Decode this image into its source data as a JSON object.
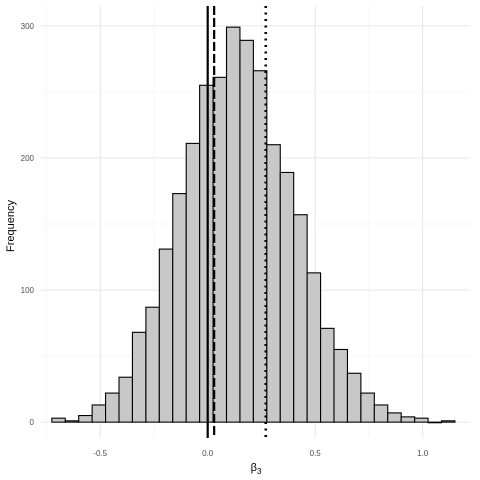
{
  "chart_data": {
    "type": "bar",
    "subtype": "histogram",
    "xlabel": "β",
    "xlabel_subscript": "3",
    "ylabel": "Frequency",
    "xlim": [
      -0.78,
      1.22
    ],
    "ylim": [
      -12,
      315
    ],
    "x_ticks": [
      -0.5,
      0.0,
      0.5,
      1.0
    ],
    "x_tick_labels": [
      "-0.5",
      "0.0",
      "0.5",
      "1.0"
    ],
    "y_ticks": [
      0,
      100,
      200,
      300
    ],
    "y_tick_labels": [
      "0",
      "100",
      "200",
      "300"
    ],
    "grid": true,
    "bin_width": 0.0625,
    "bins": [
      {
        "x0": -0.725,
        "x1": -0.6625,
        "count": 3
      },
      {
        "x0": -0.6625,
        "x1": -0.6,
        "count": 1
      },
      {
        "x0": -0.6,
        "x1": -0.5375,
        "count": 5
      },
      {
        "x0": -0.5375,
        "x1": -0.475,
        "count": 13
      },
      {
        "x0": -0.475,
        "x1": -0.4125,
        "count": 22
      },
      {
        "x0": -0.4125,
        "x1": -0.35,
        "count": 34
      },
      {
        "x0": -0.35,
        "x1": -0.2875,
        "count": 68
      },
      {
        "x0": -0.2875,
        "x1": -0.225,
        "count": 87
      },
      {
        "x0": -0.225,
        "x1": -0.1625,
        "count": 131
      },
      {
        "x0": -0.1625,
        "x1": -0.1,
        "count": 173
      },
      {
        "x0": -0.1,
        "x1": -0.0375,
        "count": 211
      },
      {
        "x0": -0.0375,
        "x1": 0.025,
        "count": 255
      },
      {
        "x0": 0.025,
        "x1": 0.0875,
        "count": 261
      },
      {
        "x0": 0.0875,
        "x1": 0.15,
        "count": 299
      },
      {
        "x0": 0.15,
        "x1": 0.2125,
        "count": 289
      },
      {
        "x0": 0.2125,
        "x1": 0.275,
        "count": 266
      },
      {
        "x0": 0.275,
        "x1": 0.3375,
        "count": 210
      },
      {
        "x0": 0.3375,
        "x1": 0.4,
        "count": 189
      },
      {
        "x0": 0.4,
        "x1": 0.4625,
        "count": 157
      },
      {
        "x0": 0.4625,
        "x1": 0.525,
        "count": 113
      },
      {
        "x0": 0.525,
        "x1": 0.5875,
        "count": 71
      },
      {
        "x0": 0.5875,
        "x1": 0.65,
        "count": 55
      },
      {
        "x0": 0.65,
        "x1": 0.7125,
        "count": 37
      },
      {
        "x0": 0.7125,
        "x1": 0.775,
        "count": 22
      },
      {
        "x0": 0.775,
        "x1": 0.8375,
        "count": 13
      },
      {
        "x0": 0.8375,
        "x1": 0.9,
        "count": 7
      },
      {
        "x0": 0.9,
        "x1": 0.9625,
        "count": 4
      },
      {
        "x0": 0.9625,
        "x1": 1.025,
        "count": 3
      },
      {
        "x0": 1.025,
        "x1": 1.0875,
        "count": 0
      },
      {
        "x0": 1.0875,
        "x1": 1.15,
        "count": 1
      }
    ],
    "reference_lines": [
      {
        "x": 0.0,
        "style": "solid"
      },
      {
        "x": 0.03,
        "style": "dashed"
      },
      {
        "x": 0.27,
        "style": "dotted"
      }
    ]
  }
}
